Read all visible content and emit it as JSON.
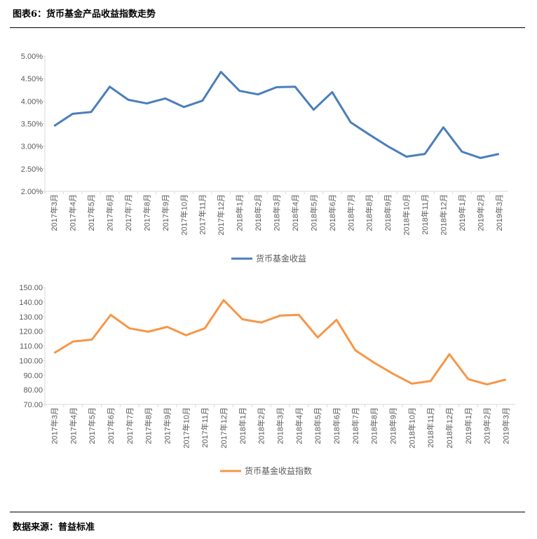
{
  "title": "图表6：货币基金产品收益指数走势",
  "source": "数据来源：普益标准",
  "chart_data": [
    {
      "type": "line",
      "title": "",
      "categories": [
        "2017年3月",
        "2017年4月",
        "2017年5月",
        "2017年6月",
        "2017年7月",
        "2017年8月",
        "2017年9月",
        "2017年10月",
        "2017年11月",
        "2017年12月",
        "2018年1月",
        "2018年2月",
        "2018年3月",
        "2018年4月",
        "2018年5月",
        "2018年6月",
        "2018年7月",
        "2018年8月",
        "2018年9月",
        "2018年10月",
        "2018年11月",
        "2018年12月",
        "2019年1月",
        "2019年2月",
        "2019年3月"
      ],
      "series": [
        {
          "name": "货币基金收益",
          "color": "#4a7ebb",
          "values": [
            3.45,
            3.72,
            3.76,
            4.32,
            4.03,
            3.95,
            4.06,
            3.87,
            4.01,
            4.65,
            4.23,
            4.15,
            4.31,
            4.32,
            3.81,
            4.2,
            3.53,
            3.26,
            3.0,
            2.77,
            2.83,
            3.42,
            2.88,
            2.74,
            2.83
          ]
        }
      ],
      "ylim": [
        2.0,
        5.0
      ],
      "yticks": [
        "2.00%",
        "2.50%",
        "3.00%",
        "3.50%",
        "4.00%",
        "4.50%",
        "5.00%"
      ],
      "legend": "bottom"
    },
    {
      "type": "line",
      "title": "",
      "categories": [
        "2017年3月",
        "2017年4月",
        "2017年5月",
        "2017年6月",
        "2017年7月",
        "2017年8月",
        "2017年9月",
        "2017年10月",
        "2017年11月",
        "2017年12月",
        "2018年1月",
        "2018年2月",
        "2018年3月",
        "2018年4月",
        "2018年5月",
        "2018年6月",
        "2018年7月",
        "2018年8月",
        "2018年9月",
        "2018年10月",
        "2018年11月",
        "2018年12月",
        "2019年1月",
        "2019年2月",
        "2019年3月"
      ],
      "series": [
        {
          "name": "货币基金收益指数",
          "color": "#f79646",
          "values": [
            105.2,
            113.0,
            114.3,
            131.2,
            122.0,
            119.7,
            123.0,
            117.3,
            122.0,
            141.3,
            128.2,
            126.0,
            130.7,
            131.2,
            115.8,
            127.8,
            107.0,
            98.5,
            91.0,
            84.2,
            86.0,
            104.3,
            87.3,
            83.7,
            87.0
          ]
        }
      ],
      "ylim": [
        70,
        150
      ],
      "yticks": [
        "70.00",
        "80.00",
        "90.00",
        "100.00",
        "110.00",
        "120.00",
        "130.00",
        "140.00",
        "150.00"
      ],
      "legend": "bottom"
    }
  ]
}
